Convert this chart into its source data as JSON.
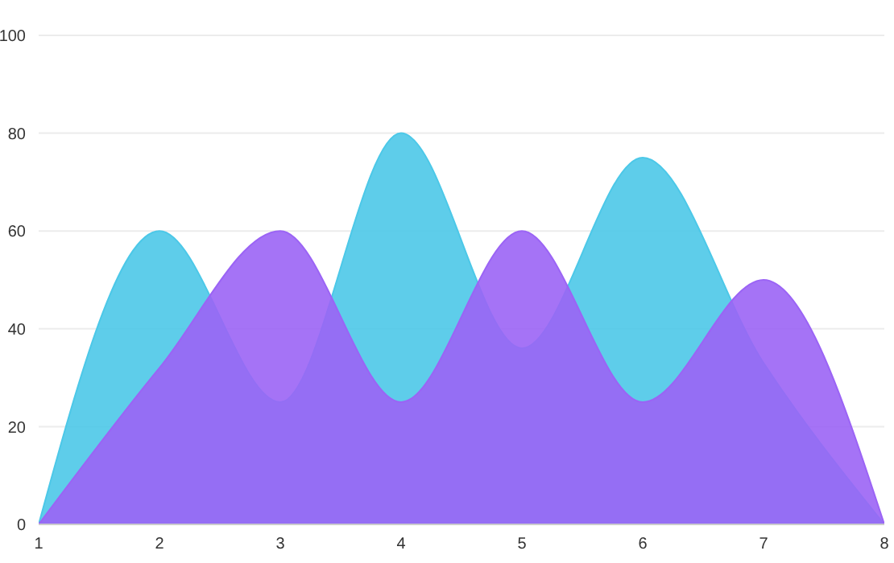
{
  "chart_data": {
    "type": "area",
    "x": [
      1,
      2,
      3,
      4,
      5,
      6,
      7,
      8
    ],
    "series": [
      {
        "color": "#4cc8e8",
        "values": [
          0,
          60,
          25,
          80,
          36,
          75,
          33,
          0
        ]
      },
      {
        "color": "#9b64f5",
        "values": [
          0,
          32,
          60,
          25,
          60,
          25,
          50,
          0
        ]
      }
    ],
    "xlim": [
      1,
      8
    ],
    "xticks": [
      1,
      2,
      3,
      4,
      5,
      6,
      7,
      8
    ],
    "ylim": [
      0,
      100
    ],
    "yticks": [
      0,
      20,
      40,
      60,
      80,
      100
    ],
    "grid": "y"
  }
}
